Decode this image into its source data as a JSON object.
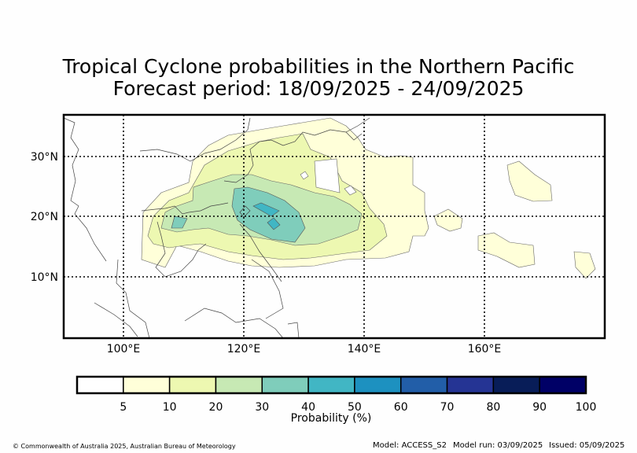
{
  "title": {
    "line1": "Tropical Cyclone probabilities in the Northern Pacific",
    "line2": "Forecast period: 18/09/2025 - 24/09/2025"
  },
  "map": {
    "lat_labels": [
      "30°N",
      "20°N",
      "10°N"
    ],
    "lon_labels": [
      "100°E",
      "120°E",
      "140°E",
      "160°E"
    ]
  },
  "colorbar": {
    "title": "Probability (%)",
    "ticks": [
      "5",
      "10",
      "20",
      "30",
      "40",
      "50",
      "60",
      "70",
      "80",
      "90",
      "100"
    ],
    "colors": [
      "#ffffff",
      "#ffffd9",
      "#edf8b1",
      "#c7e9b4",
      "#7fcdbb",
      "#41b6c4",
      "#1d91c0",
      "#225ea8",
      "#253494",
      "#081d58",
      "#000066"
    ]
  },
  "footer": {
    "copyright": "© Commonwealth of Australia 2025, Australian Bureau of Meteorology",
    "model": "Model: ACCESS_S2",
    "model_run": "Model run: 03/09/2025",
    "issued": "Issued: 05/09/2025"
  }
}
